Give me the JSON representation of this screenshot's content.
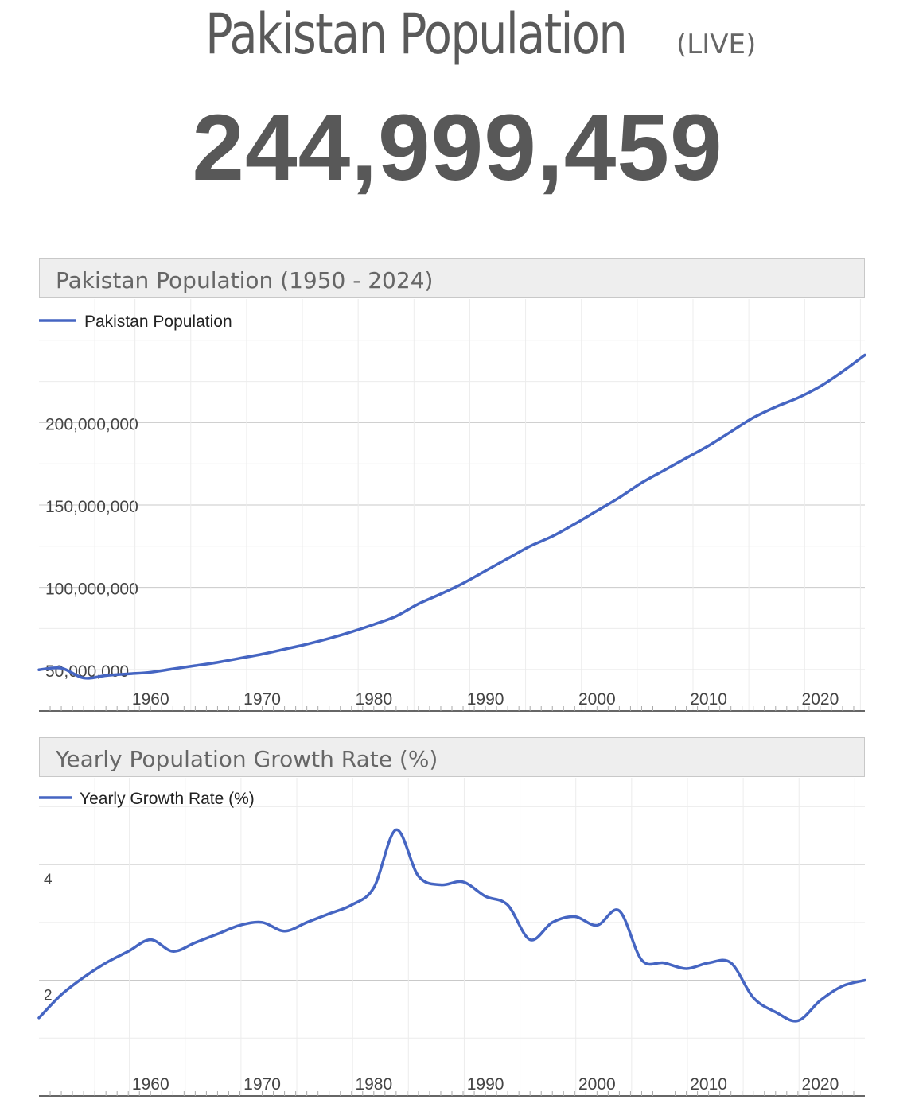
{
  "header": {
    "title": "Pakistan Population",
    "live_label": "(LIVE)",
    "counter": "244,999,459"
  },
  "colors": {
    "series": "#4565c2",
    "grid": "#e3e3e3",
    "axis": "#333333",
    "header_bg": "#eeeeee"
  },
  "chart_data": [
    {
      "type": "line",
      "title": "Pakistan Population (1950 - 2024)",
      "legend": [
        "Pakistan Population"
      ],
      "legend_position": "top-left",
      "grid": true,
      "xlim": [
        1950,
        2024
      ],
      "ylim": [
        25000000,
        275000000
      ],
      "x_ticks": [
        "1960",
        "1970",
        "1980",
        "1990",
        "2000",
        "2010",
        "2020"
      ],
      "y_ticks": [
        "50,000,000",
        "100,000,000",
        "150,000,000",
        "200,000,000"
      ],
      "series": [
        {
          "name": "Pakistan Population",
          "x": [
            1950,
            1952,
            1954,
            1956,
            1958,
            1960,
            1962,
            1964,
            1966,
            1968,
            1970,
            1972,
            1974,
            1976,
            1978,
            1980,
            1982,
            1984,
            1986,
            1988,
            1990,
            1992,
            1994,
            1996,
            1998,
            2000,
            2002,
            2004,
            2006,
            2008,
            2010,
            2012,
            2014,
            2016,
            2018,
            2020,
            2022,
            2024
          ],
          "y": [
            50000000,
            51000000,
            45000000,
            46500000,
            47500000,
            48500000,
            50500000,
            52500000,
            54500000,
            57000000,
            59500000,
            62500000,
            65500000,
            69000000,
            73000000,
            77500000,
            82500000,
            90000000,
            96000000,
            102500000,
            110000000,
            117500000,
            125000000,
            131000000,
            138500000,
            146500000,
            154500000,
            163500000,
            171000000,
            178500000,
            186000000,
            194500000,
            203000000,
            209500000,
            215000000,
            222000000,
            231000000,
            241000000
          ]
        }
      ]
    },
    {
      "type": "line",
      "title": "Yearly Population Growth Rate (%)",
      "legend": [
        "Yearly Growth Rate (%)"
      ],
      "legend_position": "top-left",
      "grid": true,
      "xlim": [
        1950,
        2024
      ],
      "ylim": [
        0,
        5.5
      ],
      "x_ticks": [
        "1960",
        "1970",
        "1980",
        "1990",
        "2000",
        "2010",
        "2020"
      ],
      "y_ticks": [
        "2",
        "4"
      ],
      "series": [
        {
          "name": "Yearly Growth Rate (%)",
          "x": [
            1950,
            1952,
            1954,
            1956,
            1958,
            1960,
            1962,
            1964,
            1966,
            1968,
            1970,
            1972,
            1974,
            1976,
            1978,
            1980,
            1982,
            1984,
            1986,
            1988,
            1990,
            1992,
            1994,
            1996,
            1998,
            2000,
            2002,
            2004,
            2006,
            2008,
            2010,
            2012,
            2014,
            2016,
            2018,
            2020,
            2022,
            2024
          ],
          "y": [
            1.35,
            1.75,
            2.05,
            2.3,
            2.5,
            2.7,
            2.5,
            2.65,
            2.8,
            2.95,
            3.0,
            2.85,
            3.0,
            3.15,
            3.3,
            3.6,
            4.6,
            3.8,
            3.65,
            3.7,
            3.45,
            3.3,
            2.7,
            3.0,
            3.1,
            2.95,
            3.2,
            2.35,
            2.3,
            2.2,
            2.3,
            2.3,
            1.7,
            1.45,
            1.3,
            1.65,
            1.9,
            2.0
          ]
        }
      ]
    }
  ]
}
